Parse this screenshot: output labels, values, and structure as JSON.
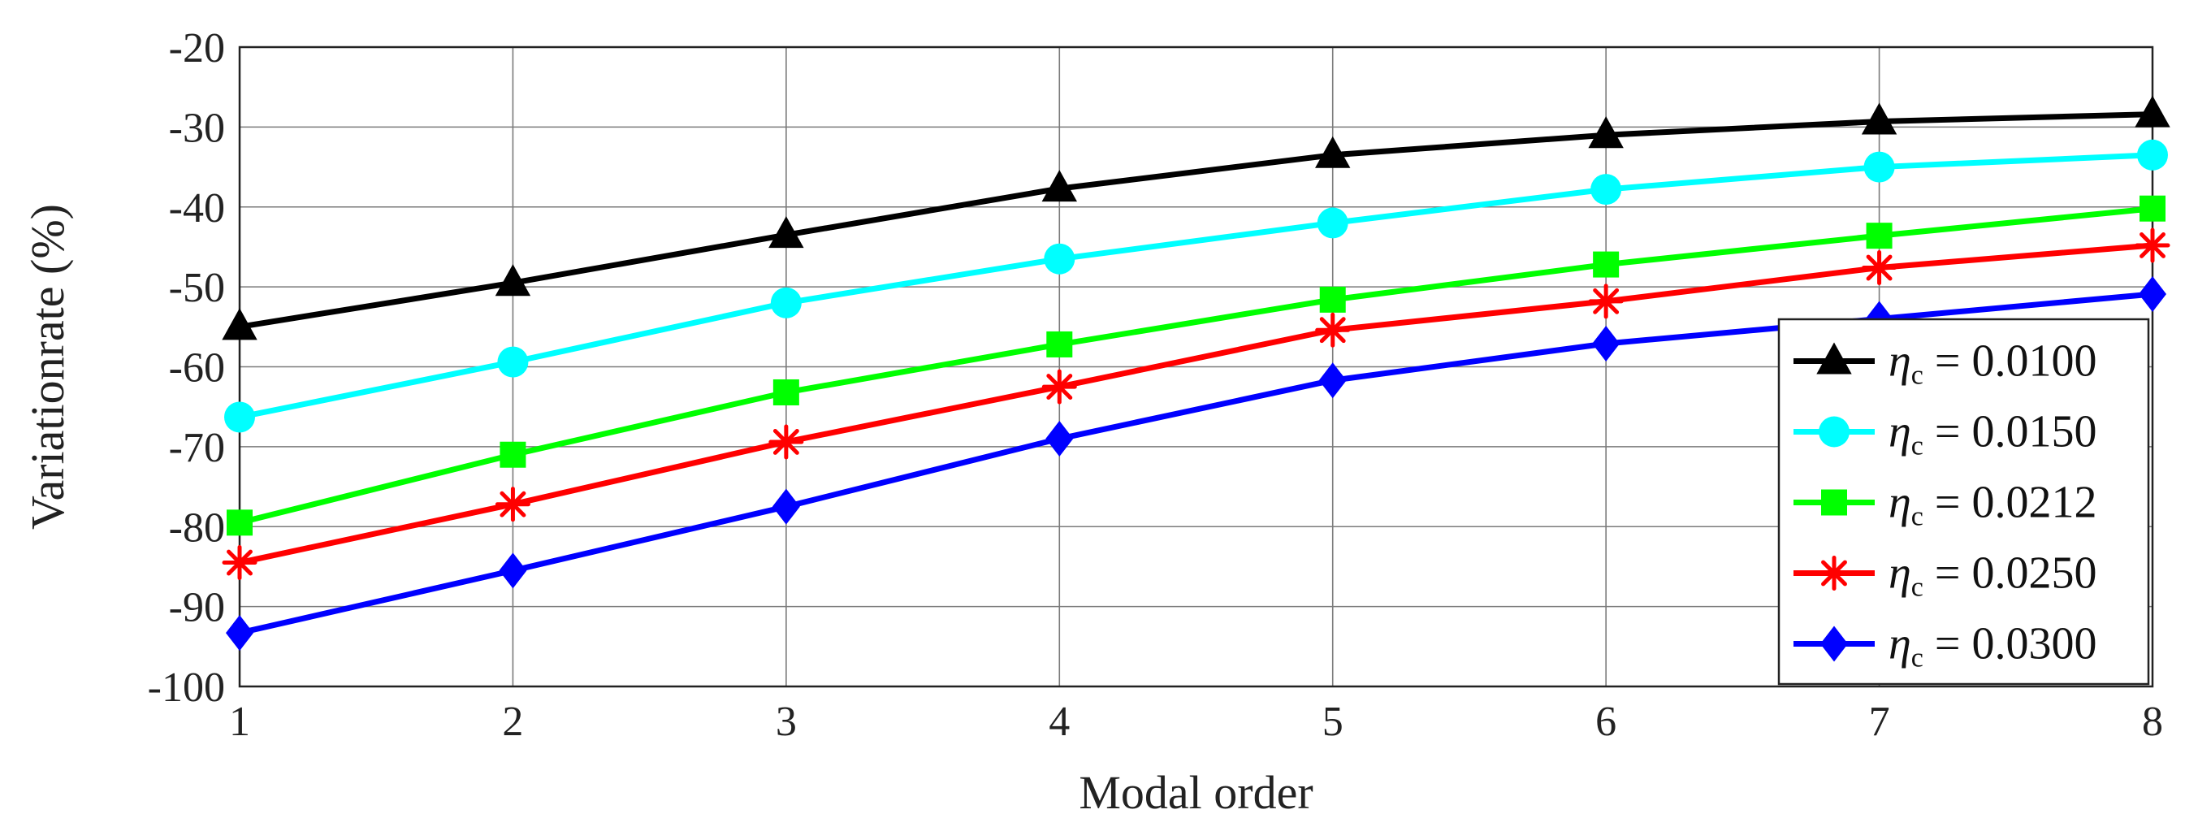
{
  "chart_data": {
    "type": "line",
    "title": "",
    "xlabel": "Modal order",
    "ylabel": "Variationrate (%)",
    "x": [
      1,
      2,
      3,
      4,
      5,
      6,
      7,
      8
    ],
    "xticks": [
      "1",
      "2",
      "3",
      "4",
      "5",
      "6",
      "7",
      "8"
    ],
    "yticks": [
      "-20",
      "-30",
      "-40",
      "-50",
      "-60",
      "-70",
      "-80",
      "-90",
      "-100"
    ],
    "xlim": [
      1,
      8
    ],
    "ylim": [
      -100,
      -20
    ],
    "grid": true,
    "legend_position": "bottom-right",
    "series": [
      {
        "name": "ηc = 0.0100",
        "symbol": "η",
        "sub": "c",
        "value_text": " = 0.0100",
        "color": "#000000",
        "marker": "triangle",
        "values": [
          -55,
          -49.5,
          -43.5,
          -37.7,
          -33.5,
          -31,
          -29.3,
          -28.4
        ]
      },
      {
        "name": "ηc = 0.0150",
        "symbol": "η",
        "sub": "c",
        "value_text": " = 0.0150",
        "color": "#00ffff",
        "marker": "circle",
        "values": [
          -66.3,
          -59.4,
          -52,
          -46.5,
          -42,
          -37.8,
          -35,
          -33.5
        ]
      },
      {
        "name": "ηc = 0.0212",
        "symbol": "η",
        "sub": "c",
        "value_text": " = 0.0212",
        "color": "#00ff00",
        "marker": "square",
        "values": [
          -79.5,
          -71,
          -63.2,
          -57.2,
          -51.6,
          -47.2,
          -43.6,
          -40.2
        ]
      },
      {
        "name": "ηc = 0.0250",
        "symbol": "η",
        "sub": "c",
        "value_text": " = 0.0250",
        "color": "#ff0000",
        "marker": "asterisk",
        "values": [
          -84.5,
          -77.2,
          -69.4,
          -62.5,
          -55.4,
          -51.8,
          -47.6,
          -44.8
        ]
      },
      {
        "name": "ηc = 0.0300",
        "symbol": "η",
        "sub": "c",
        "value_text": " = 0.0300",
        "color": "#0000ff",
        "marker": "diamond",
        "values": [
          -93.3,
          -85.5,
          -77.5,
          -69,
          -61.7,
          -57.1,
          -54,
          -50.9
        ]
      }
    ]
  }
}
